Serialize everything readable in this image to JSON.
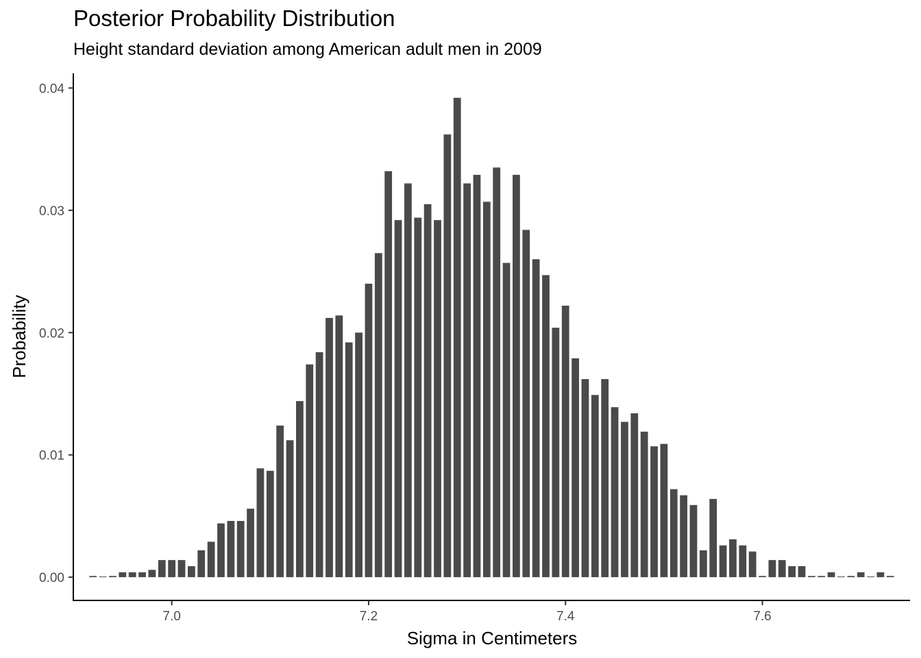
{
  "chart_data": {
    "type": "bar",
    "title": "Posterior Probability Distribution",
    "subtitle": "Height standard deviation among American adult men in 2009",
    "xlabel": "Sigma in Centimeters",
    "ylabel": "Probability",
    "xlim": [
      6.9,
      7.75
    ],
    "ylim": [
      -0.0019,
      0.0412
    ],
    "grid": false,
    "bar_color": "#4a4a4a",
    "x_ticks": [
      {
        "value": 7.0,
        "label": "7.0"
      },
      {
        "value": 7.2,
        "label": "7.2"
      },
      {
        "value": 7.4,
        "label": "7.4"
      },
      {
        "value": 7.6,
        "label": "7.6"
      }
    ],
    "y_ticks": [
      {
        "value": 0.0,
        "label": "0.00"
      },
      {
        "value": 0.01,
        "label": "0.01"
      },
      {
        "value": 0.02,
        "label": "0.02"
      },
      {
        "value": 0.03,
        "label": "0.03"
      },
      {
        "value": 0.04,
        "label": "0.04"
      }
    ],
    "bar_width": 0.0075,
    "x": [
      6.92,
      6.93,
      6.94,
      6.95,
      6.96,
      6.97,
      6.98,
      6.99,
      7.0,
      7.01,
      7.02,
      7.03,
      7.04,
      7.05,
      7.06,
      7.07,
      7.08,
      7.09,
      7.1,
      7.11,
      7.12,
      7.13,
      7.14,
      7.15,
      7.16,
      7.17,
      7.18,
      7.19,
      7.2,
      7.21,
      7.22,
      7.23,
      7.24,
      7.25,
      7.26,
      7.27,
      7.28,
      7.29,
      7.3,
      7.31,
      7.32,
      7.33,
      7.34,
      7.35,
      7.36,
      7.37,
      7.38,
      7.39,
      7.4,
      7.41,
      7.42,
      7.43,
      7.44,
      7.45,
      7.46,
      7.47,
      7.48,
      7.49,
      7.5,
      7.51,
      7.52,
      7.53,
      7.54,
      7.55,
      7.56,
      7.57,
      7.58,
      7.59,
      7.6,
      7.61,
      7.62,
      7.63,
      7.64,
      7.65,
      7.66,
      7.67,
      7.68,
      7.69,
      7.7,
      7.71,
      7.72,
      7.73
    ],
    "values": [
      0.0001,
      0,
      0.0001,
      0.0004,
      0.0004,
      0.0004,
      0.0006,
      0.0014,
      0.0014,
      0.0014,
      0.0009,
      0.0022,
      0.0029,
      0.0044,
      0.0046,
      0.0046,
      0.0056,
      0.0089,
      0.0087,
      0.0124,
      0.0112,
      0.0144,
      0.0174,
      0.0184,
      0.0212,
      0.0214,
      0.0192,
      0.02,
      0.024,
      0.0265,
      0.0332,
      0.0292,
      0.0322,
      0.0294,
      0.0305,
      0.0292,
      0.0362,
      0.0392,
      0.0322,
      0.0329,
      0.0307,
      0.0335,
      0.0257,
      0.0329,
      0.0284,
      0.026,
      0.0247,
      0.0204,
      0.0222,
      0.0179,
      0.0162,
      0.0149,
      0.0162,
      0.0139,
      0.0127,
      0.0134,
      0.0119,
      0.0107,
      0.0109,
      0.0072,
      0.0067,
      0.0059,
      0.0022,
      0.0064,
      0.0026,
      0.0031,
      0.0026,
      0.0021,
      0.0001,
      0.0014,
      0.0014,
      0.0009,
      0.0009,
      0.0001,
      0.0001,
      0.0004,
      0,
      0.0001,
      0.0004,
      0,
      0.0004,
      0.0001
    ]
  }
}
